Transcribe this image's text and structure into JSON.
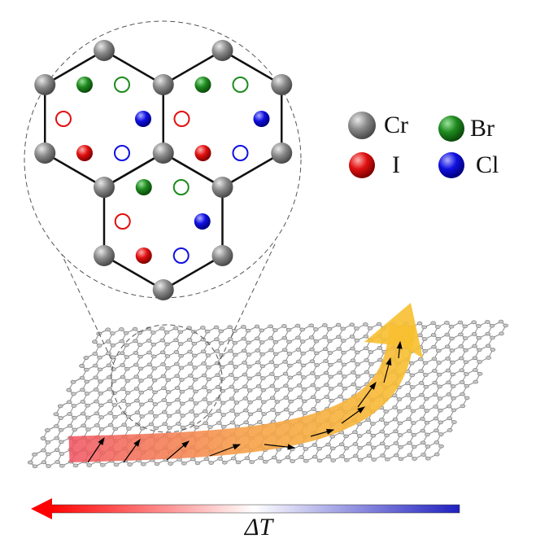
{
  "legend": [
    {
      "label": "Cr"
    },
    {
      "label": "Br"
    },
    {
      "label": "I"
    },
    {
      "label": "Cl"
    }
  ],
  "gradient_label": "ΔT"
}
